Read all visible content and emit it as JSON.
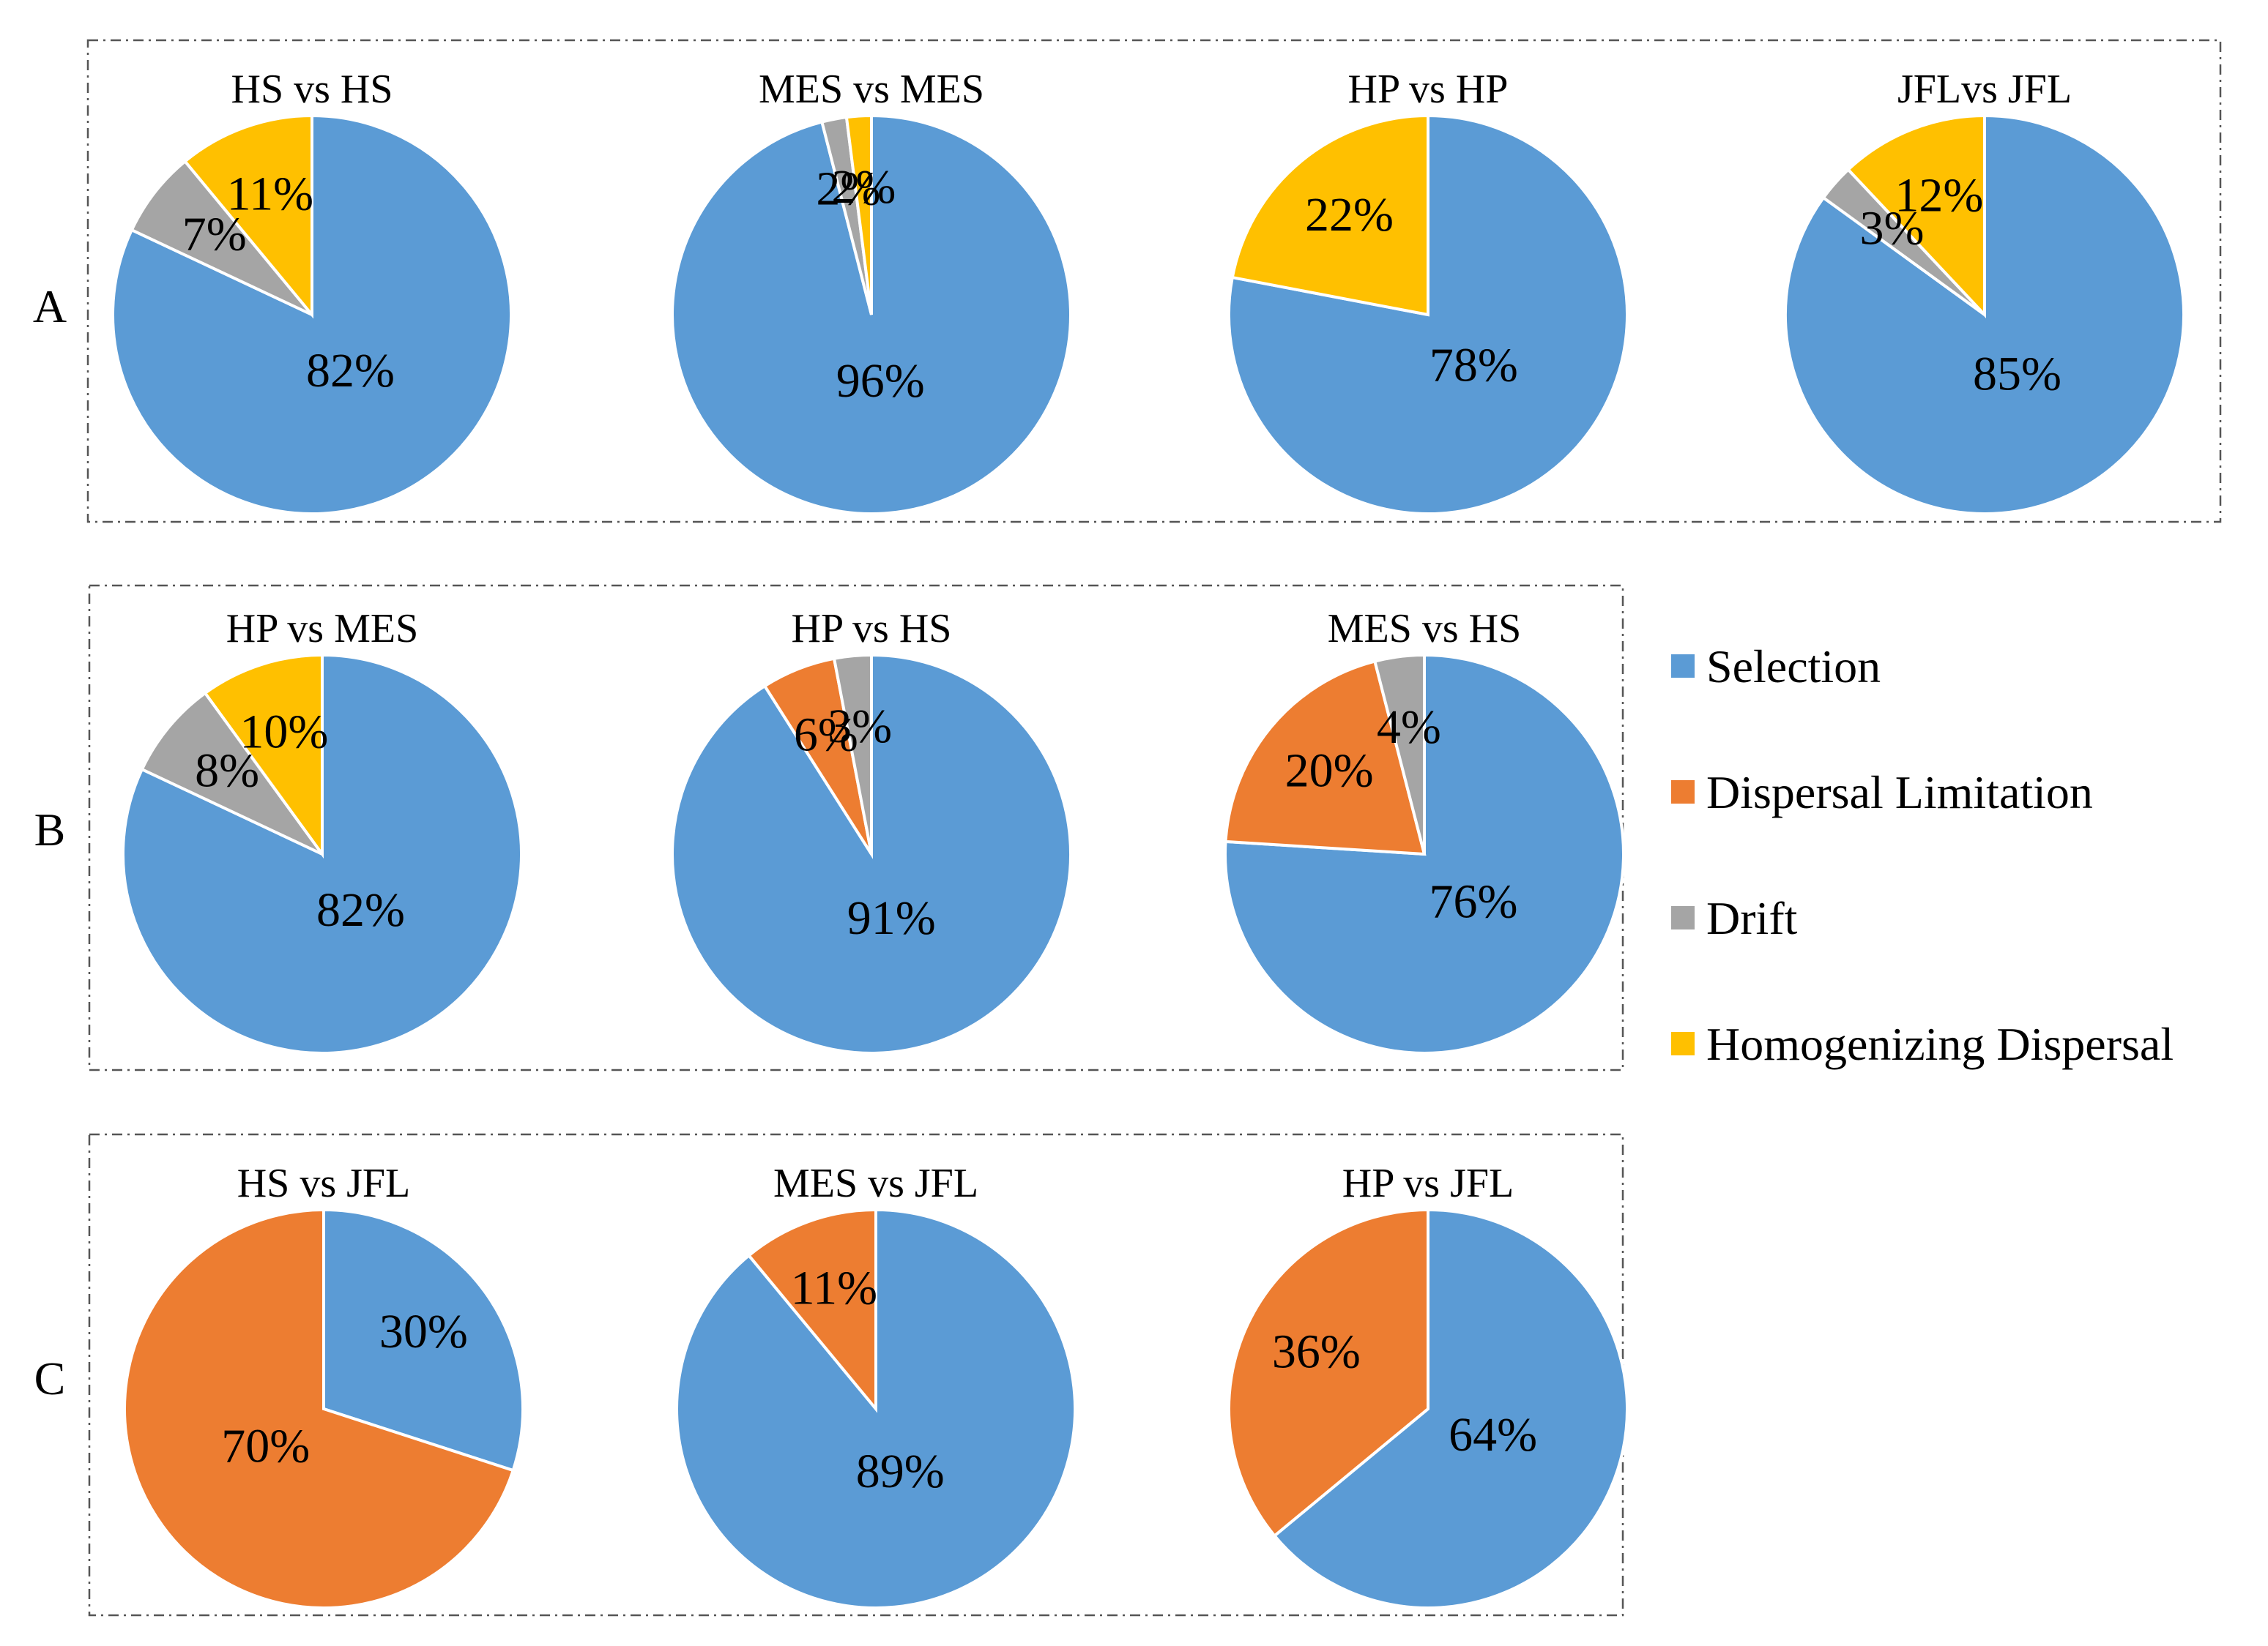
{
  "chart_data": {
    "type": "pie",
    "colors": {
      "Selection": "#5B9BD5",
      "Dispersal Limitation": "#ED7D31",
      "Drift": "#A5A5A5",
      "Homogenizing Dispersal": "#FFC000"
    },
    "legend": [
      "Selection",
      "Dispersal Limitation",
      "Drift",
      "Homogenizing Dispersal"
    ],
    "legend_position": "right",
    "row_labels": [
      "A",
      "B",
      "C"
    ],
    "pies": [
      {
        "row": "A",
        "title": "HS vs HS",
        "slices": [
          {
            "category": "Selection",
            "value": 82,
            "label": "82%"
          },
          {
            "category": "Drift",
            "value": 7,
            "label": "7%"
          },
          {
            "category": "Homogenizing Dispersal",
            "value": 11,
            "label": "11%"
          }
        ]
      },
      {
        "row": "A",
        "title": "MES vs MES",
        "slices": [
          {
            "category": "Selection",
            "value": 96,
            "label": "96%"
          },
          {
            "category": "Drift",
            "value": 2,
            "label": "2%"
          },
          {
            "category": "Homogenizing Dispersal",
            "value": 2,
            "label": "2%"
          }
        ]
      },
      {
        "row": "A",
        "title": "HP vs HP",
        "slices": [
          {
            "category": "Selection",
            "value": 78,
            "label": "78%"
          },
          {
            "category": "Homogenizing Dispersal",
            "value": 22,
            "label": "22%"
          }
        ]
      },
      {
        "row": "A",
        "title": "JFLvs JFL",
        "slices": [
          {
            "category": "Selection",
            "value": 85,
            "label": "85%"
          },
          {
            "category": "Drift",
            "value": 3,
            "label": "3%"
          },
          {
            "category": "Homogenizing Dispersal",
            "value": 12,
            "label": "12%"
          }
        ]
      },
      {
        "row": "B",
        "title": "HP vs MES",
        "slices": [
          {
            "category": "Selection",
            "value": 82,
            "label": "82%"
          },
          {
            "category": "Drift",
            "value": 8,
            "label": "8%"
          },
          {
            "category": "Homogenizing Dispersal",
            "value": 10,
            "label": "10%"
          }
        ]
      },
      {
        "row": "B",
        "title": "HP vs HS",
        "slices": [
          {
            "category": "Selection",
            "value": 91,
            "label": "91%"
          },
          {
            "category": "Dispersal Limitation",
            "value": 6,
            "label": "6%"
          },
          {
            "category": "Drift",
            "value": 3,
            "label": "3%"
          }
        ]
      },
      {
        "row": "B",
        "title": "MES vs HS",
        "slices": [
          {
            "category": "Selection",
            "value": 76,
            "label": "76%"
          },
          {
            "category": "Dispersal Limitation",
            "value": 20,
            "label": "20%"
          },
          {
            "category": "Drift",
            "value": 4,
            "label": "4%"
          }
        ]
      },
      {
        "row": "C",
        "title": "HS vs JFL",
        "slices": [
          {
            "category": "Selection",
            "value": 30,
            "label": "30%"
          },
          {
            "category": "Dispersal Limitation",
            "value": 70,
            "label": "70%"
          }
        ]
      },
      {
        "row": "C",
        "title": "MES vs JFL",
        "slices": [
          {
            "category": "Selection",
            "value": 89,
            "label": "89%"
          },
          {
            "category": "Dispersal Limitation",
            "value": 11,
            "label": "11%"
          }
        ]
      },
      {
        "row": "C",
        "title": "HP vs JFL",
        "slices": [
          {
            "category": "Selection",
            "value": 64,
            "label": "64%"
          },
          {
            "category": "Dispersal Limitation",
            "value": 36,
            "label": "36%"
          }
        ]
      }
    ]
  }
}
